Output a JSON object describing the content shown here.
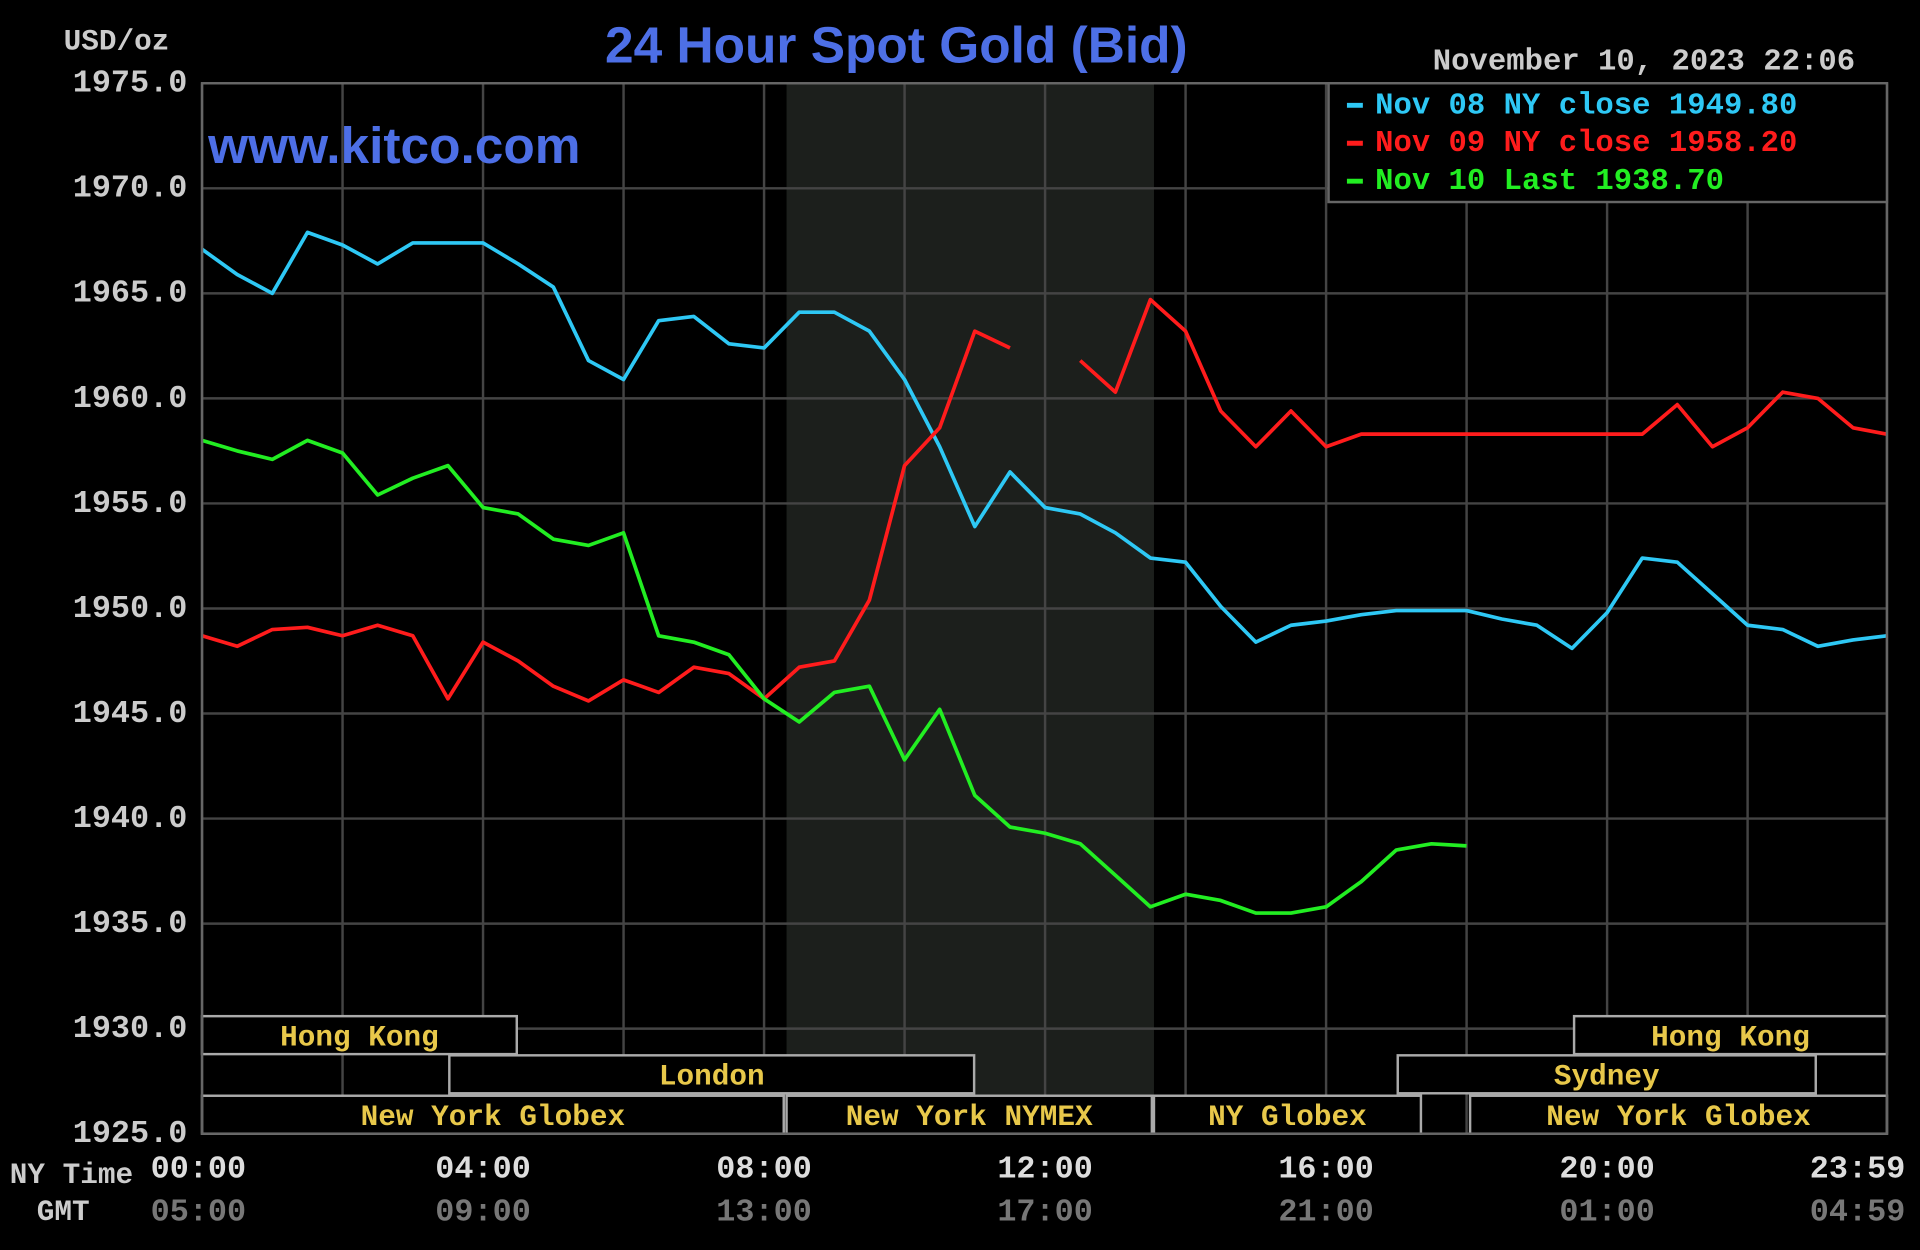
{
  "chart_data": {
    "type": "line",
    "title": "24 Hour Spot Gold (Bid)",
    "y_label": "USD/oz",
    "timestamp": "November 10, 2023 22:06",
    "watermark": "www.kitco.com",
    "x_row_label": "NY Time",
    "gmt_row_label": "GMT",
    "x": [
      0,
      0.5,
      1,
      1.5,
      2,
      2.5,
      3,
      3.5,
      4,
      4.5,
      5,
      5.5,
      6,
      6.5,
      7,
      7.5,
      8,
      8.5,
      9,
      9.5,
      10,
      10.5,
      11,
      11.5,
      12,
      12.5,
      13,
      13.5,
      14,
      14.5,
      15,
      15.5,
      16,
      16.5,
      17,
      17.5,
      18,
      18.5,
      19,
      19.5,
      20,
      20.5,
      21,
      21.5,
      22,
      22.5,
      23,
      23.5,
      23.9833
    ],
    "xlim": [
      0,
      23.9833
    ],
    "xticks": [
      {
        "value": 0,
        "label": "00:00"
      },
      {
        "value": 4,
        "label": "04:00"
      },
      {
        "value": 8,
        "label": "08:00"
      },
      {
        "value": 12,
        "label": "12:00"
      },
      {
        "value": 16,
        "label": "16:00"
      },
      {
        "value": 20,
        "label": "20:00"
      },
      {
        "value": 23.9833,
        "label": "23:59"
      }
    ],
    "gmt_ticks": [
      "05:00",
      "09:00",
      "13:00",
      "17:00",
      "21:00",
      "01:00",
      "04:59"
    ],
    "xminor": [
      2,
      6,
      10,
      14,
      18,
      22
    ],
    "ylim": [
      1925,
      1975
    ],
    "yticks": [
      {
        "value": 1975,
        "label": "1975.0"
      },
      {
        "value": 1970,
        "label": "1970.0"
      },
      {
        "value": 1965,
        "label": "1965.0"
      },
      {
        "value": 1960,
        "label": "1960.0"
      },
      {
        "value": 1955,
        "label": "1955.0"
      },
      {
        "value": 1950,
        "label": "1950.0"
      },
      {
        "value": 1945,
        "label": "1945.0"
      },
      {
        "value": 1940,
        "label": "1940.0"
      },
      {
        "value": 1935,
        "label": "1935.0"
      },
      {
        "value": 1930,
        "label": "1930.0"
      },
      {
        "value": 1925,
        "label": "1925.0"
      }
    ],
    "grid": true,
    "shaded": [
      8.32,
      13.55
    ],
    "series": [
      {
        "name": "Nov 08 NY close",
        "legend_value": {
          "value": 1949.8,
          "label": "1949.80"
        },
        "color": "#2ec8f5",
        "values": [
          1967.1,
          1965.9,
          1965.0,
          1967.9,
          1967.3,
          1966.4,
          1967.4,
          1967.4,
          1967.4,
          1966.4,
          1965.3,
          1961.8,
          1960.9,
          1963.7,
          1963.9,
          1962.6,
          1962.4,
          1964.1,
          1964.1,
          1963.2,
          1960.9,
          1957.7,
          1953.9,
          1956.5,
          1954.8,
          1954.5,
          1953.6,
          1952.4,
          1952.2,
          1950.1,
          1948.4,
          1949.2,
          1949.4,
          1949.7,
          1949.9,
          1949.9,
          1949.9,
          1949.5,
          1949.2,
          1948.1,
          1949.8,
          1952.4,
          1952.2,
          1950.7,
          1949.2,
          1949.0,
          1948.2,
          1948.5,
          1948.7
        ]
      },
      {
        "name": "Nov 09 NY close",
        "legend_value": {
          "value": 1958.2,
          "label": "1958.20"
        },
        "color": "#ff1c1c",
        "values": [
          1948.7,
          1948.2,
          1949.0,
          1949.1,
          1948.7,
          1949.2,
          1948.7,
          1945.7,
          1948.4,
          1947.5,
          1946.3,
          1945.6,
          1946.6,
          1946.0,
          1947.2,
          1946.9,
          1945.7,
          1947.2,
          1947.5,
          1950.4,
          1956.8,
          1958.6,
          1963.2,
          1962.4,
          null,
          1961.8,
          1960.3,
          1964.7,
          1963.2,
          1959.4,
          1957.7,
          1959.4,
          1957.7,
          1958.3,
          1958.3,
          1958.3,
          1958.3,
          1958.3,
          1958.3,
          1958.3,
          1958.3,
          1958.3,
          1959.7,
          1957.7,
          1958.6,
          1960.3,
          1960.0,
          1958.6,
          1958.3
        ]
      },
      {
        "name": "Nov 10 Last",
        "legend_value": {
          "value": 1938.7,
          "label": "1938.70"
        },
        "color": "#22ee22",
        "values": [
          1958.0,
          1957.5,
          1957.1,
          1958.0,
          1957.4,
          1955.4,
          1956.2,
          1956.8,
          1954.8,
          1954.5,
          1953.3,
          1953.0,
          1953.6,
          1948.7,
          1948.4,
          1947.8,
          1945.7,
          1944.6,
          1946.0,
          1946.3,
          1942.8,
          1945.2,
          1941.1,
          1939.6,
          1939.3,
          1938.8,
          1937.3,
          1935.8,
          1936.4,
          1936.1,
          1935.5,
          1935.5,
          1935.8,
          1937.0,
          1938.5,
          1938.8,
          1938.7,
          null,
          null,
          null,
          null,
          null,
          null,
          null,
          null,
          null,
          null,
          null,
          null
        ]
      }
    ],
    "session_rows": [
      [
        {
          "label": "Hong Kong",
          "start": 0,
          "end": 4.48
        },
        {
          "label": "Hong Kong",
          "start": 19.53,
          "end": 23.9833
        }
      ],
      [
        {
          "label": "London",
          "start": 3.52,
          "end": 10.99
        },
        {
          "label": "Sydney",
          "start": 17.02,
          "end": 22.97
        }
      ],
      [
        {
          "label": "New York Globex",
          "start": 0,
          "end": 8.28
        },
        {
          "label": "New York NYMEX",
          "start": 8.32,
          "end": 13.52
        },
        {
          "label": "NY Globex",
          "start": 13.55,
          "end": 17.35
        },
        {
          "label": "New York Globex",
          "start": 18.05,
          "end": 23.9833
        }
      ]
    ]
  }
}
